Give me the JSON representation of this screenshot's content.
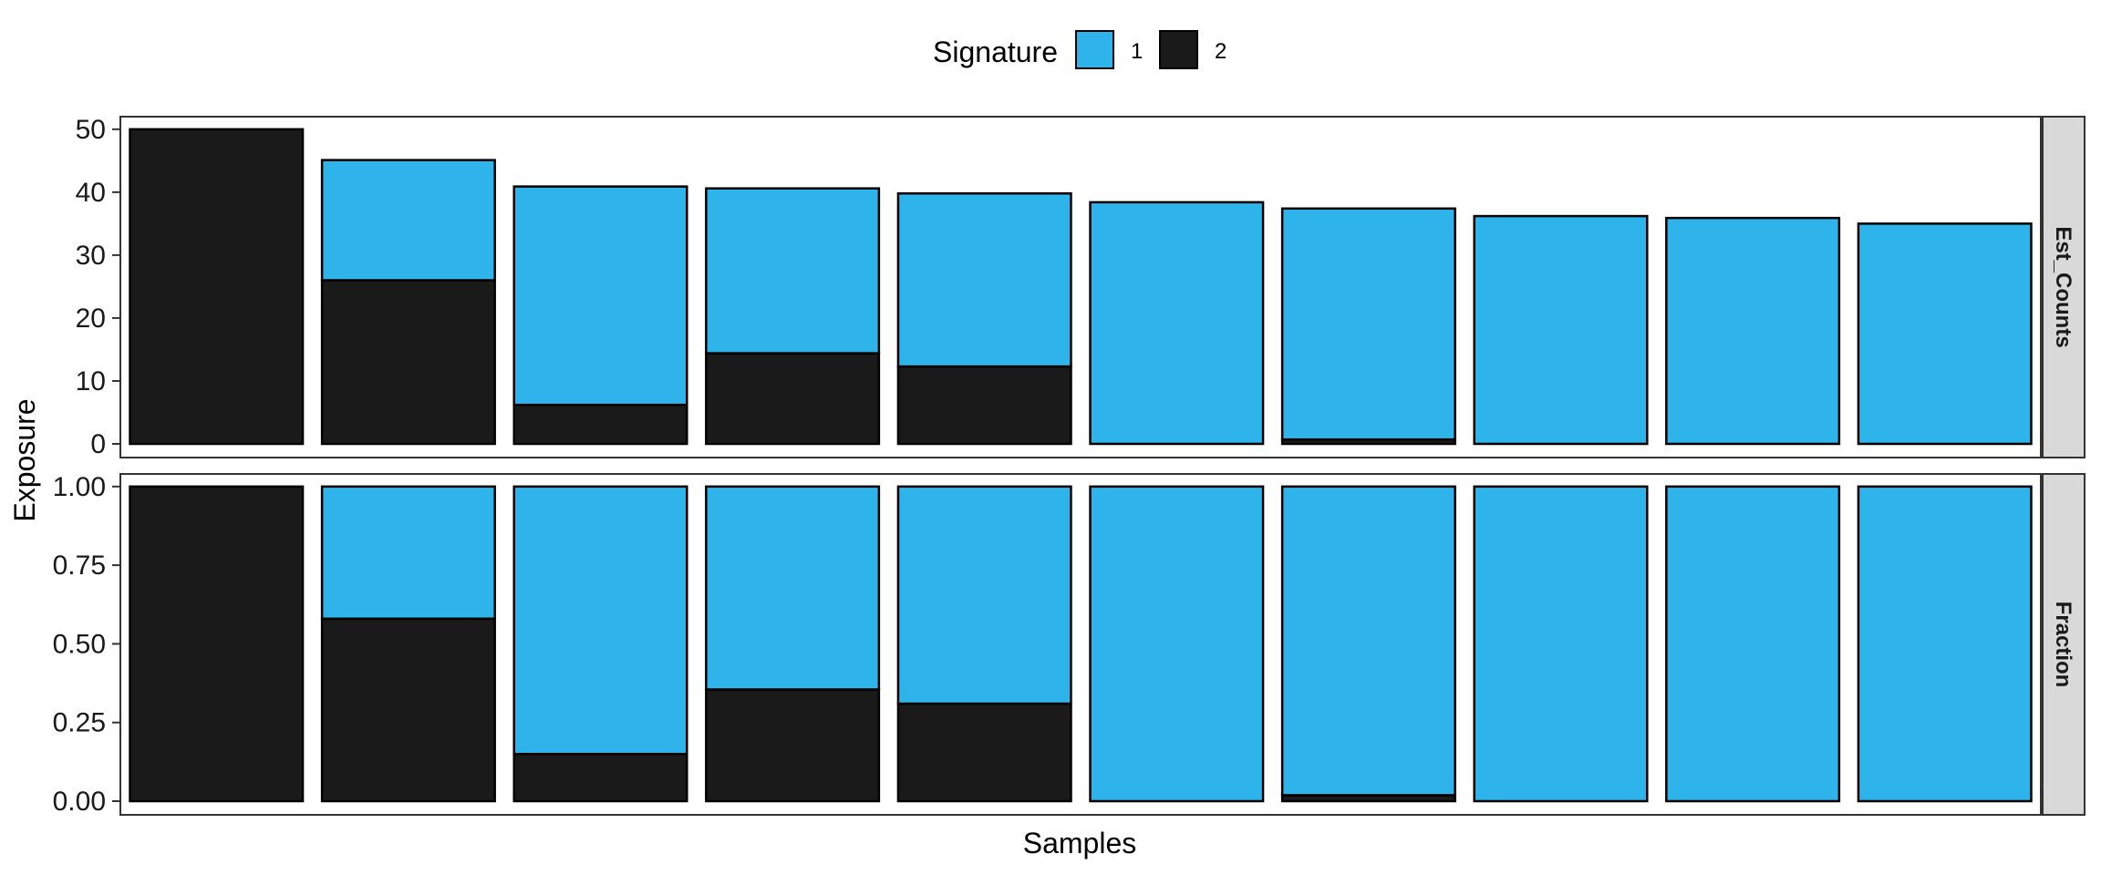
{
  "chart_data": {
    "type": "bar",
    "stacked": true,
    "xlabel": "Samples",
    "ylabel": "Exposure",
    "legend": {
      "title": "Signature",
      "placement": "top",
      "entries": [
        {
          "label": "1",
          "color": "#2EB4EB"
        },
        {
          "label": "2",
          "color": "#1A1A1A"
        }
      ]
    },
    "grid": false,
    "panels": [
      {
        "strip": "Est_Counts",
        "ylim": [
          0,
          52
        ],
        "yticks": [
          0,
          10,
          20,
          30,
          40,
          50
        ],
        "ytick_labels": [
          "0",
          "10",
          "20",
          "30",
          "40",
          "50"
        ],
        "series": [
          {
            "name": "2",
            "values": [
              50,
              26,
              6.2,
              14.4,
              12.3,
              0,
              0.7,
              0,
              0,
              0
            ]
          },
          {
            "name": "1",
            "values": [
              0,
              19.1,
              34.7,
              26.2,
              27.5,
              38.4,
              36.7,
              36.2,
              35.9,
              35.0
            ]
          }
        ]
      },
      {
        "strip": "Fraction",
        "ylim": [
          0,
          1.04
        ],
        "yticks": [
          0,
          0.25,
          0.5,
          0.75,
          1.0
        ],
        "ytick_labels": [
          "0.00",
          "0.25",
          "0.50",
          "0.75",
          "1.00"
        ],
        "series": [
          {
            "name": "2",
            "values": [
              1.0,
              0.58,
              0.15,
              0.355,
              0.31,
              0,
              0.019,
              0,
              0,
              0
            ]
          },
          {
            "name": "1",
            "values": [
              0,
              0.42,
              0.85,
              0.645,
              0.69,
              1.0,
              0.981,
              1.0,
              1.0,
              1.0
            ]
          }
        ]
      }
    ]
  }
}
